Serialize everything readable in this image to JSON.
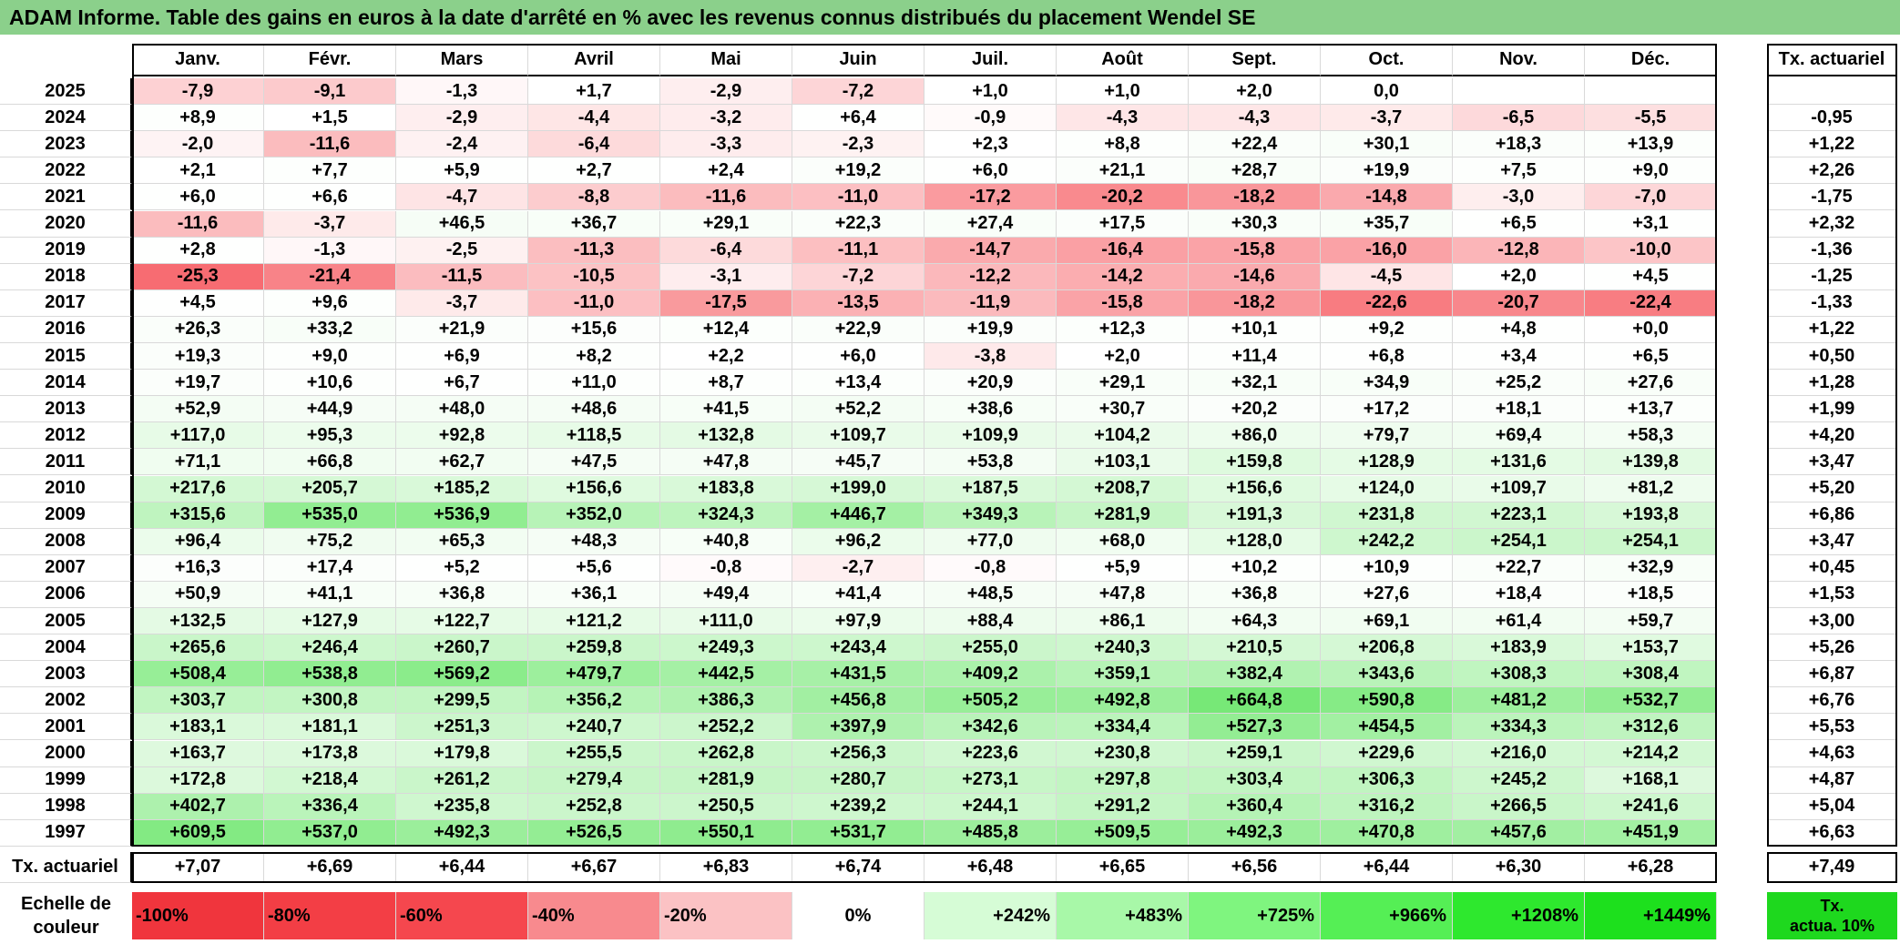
{
  "title": "ADAM Informe. Table des gains en euros à la date d'arrêté en % avec les revenus connus distribués du placement Wendel SE",
  "months": [
    "Janv.",
    "Févr.",
    "Mars",
    "Avril",
    "Mai",
    "Juin",
    "Juil.",
    "Août",
    "Sept.",
    "Oct.",
    "Nov.",
    "Déc."
  ],
  "tx_header": "Tx. actuariel",
  "rows": [
    {
      "year": "2025",
      "vals": [
        "-7,9",
        "-9,1",
        "-1,3",
        "+1,7",
        "-2,9",
        "-7,2",
        "+1,0",
        "+1,0",
        "+2,0",
        "0,0",
        "",
        ""
      ],
      "tx": ""
    },
    {
      "year": "2024",
      "vals": [
        "+8,9",
        "+1,5",
        "-2,9",
        "-4,4",
        "-3,2",
        "+6,4",
        "-0,9",
        "-4,3",
        "-4,3",
        "-3,7",
        "-6,5",
        "-5,5"
      ],
      "tx": "-0,95"
    },
    {
      "year": "2023",
      "vals": [
        "-2,0",
        "-11,6",
        "-2,4",
        "-6,4",
        "-3,3",
        "-2,3",
        "+2,3",
        "+8,8",
        "+22,4",
        "+30,1",
        "+18,3",
        "+13,9"
      ],
      "tx": "+1,22"
    },
    {
      "year": "2022",
      "vals": [
        "+2,1",
        "+7,7",
        "+5,9",
        "+2,7",
        "+2,4",
        "+19,2",
        "+6,0",
        "+21,1",
        "+28,7",
        "+19,9",
        "+7,5",
        "+9,0"
      ],
      "tx": "+2,26"
    },
    {
      "year": "2021",
      "vals": [
        "+6,0",
        "+6,6",
        "-4,7",
        "-8,8",
        "-11,6",
        "-11,0",
        "-17,2",
        "-20,2",
        "-18,2",
        "-14,8",
        "-3,0",
        "-7,0"
      ],
      "tx": "-1,75"
    },
    {
      "year": "2020",
      "vals": [
        "-11,6",
        "-3,7",
        "+46,5",
        "+36,7",
        "+29,1",
        "+22,3",
        "+27,4",
        "+17,5",
        "+30,3",
        "+35,7",
        "+6,5",
        "+3,1"
      ],
      "tx": "+2,32"
    },
    {
      "year": "2019",
      "vals": [
        "+2,8",
        "-1,3",
        "-2,5",
        "-11,3",
        "-6,4",
        "-11,1",
        "-14,7",
        "-16,4",
        "-15,8",
        "-16,0",
        "-12,8",
        "-10,0"
      ],
      "tx": "-1,36"
    },
    {
      "year": "2018",
      "vals": [
        "-25,3",
        "-21,4",
        "-11,5",
        "-10,5",
        "-3,1",
        "-7,2",
        "-12,2",
        "-14,2",
        "-14,6",
        "-4,5",
        "+2,0",
        "+4,5"
      ],
      "tx": "-1,25"
    },
    {
      "year": "2017",
      "vals": [
        "+4,5",
        "+9,6",
        "-3,7",
        "-11,0",
        "-17,5",
        "-13,5",
        "-11,9",
        "-15,8",
        "-18,2",
        "-22,6",
        "-20,7",
        "-22,4"
      ],
      "tx": "-1,33"
    },
    {
      "year": "2016",
      "vals": [
        "+26,3",
        "+33,2",
        "+21,9",
        "+15,6",
        "+12,4",
        "+22,9",
        "+19,9",
        "+12,3",
        "+10,1",
        "+9,2",
        "+4,8",
        "+0,0"
      ],
      "tx": "+1,22"
    },
    {
      "year": "2015",
      "vals": [
        "+19,3",
        "+9,0",
        "+6,9",
        "+8,2",
        "+2,2",
        "+6,0",
        "-3,8",
        "+2,0",
        "+11,4",
        "+6,8",
        "+3,4",
        "+6,5"
      ],
      "tx": "+0,50"
    },
    {
      "year": "2014",
      "vals": [
        "+19,7",
        "+10,6",
        "+6,7",
        "+11,0",
        "+8,7",
        "+13,4",
        "+20,9",
        "+29,1",
        "+32,1",
        "+34,9",
        "+25,2",
        "+27,6"
      ],
      "tx": "+1,28"
    },
    {
      "year": "2013",
      "vals": [
        "+52,9",
        "+44,9",
        "+48,0",
        "+48,6",
        "+41,5",
        "+52,2",
        "+38,6",
        "+30,7",
        "+20,2",
        "+17,2",
        "+18,1",
        "+13,7"
      ],
      "tx": "+1,99"
    },
    {
      "year": "2012",
      "vals": [
        "+117,0",
        "+95,3",
        "+92,8",
        "+118,5",
        "+132,8",
        "+109,7",
        "+109,9",
        "+104,2",
        "+86,0",
        "+79,7",
        "+69,4",
        "+58,3"
      ],
      "tx": "+4,20"
    },
    {
      "year": "2011",
      "vals": [
        "+71,1",
        "+66,8",
        "+62,7",
        "+47,5",
        "+47,8",
        "+45,7",
        "+53,8",
        "+103,1",
        "+159,8",
        "+128,9",
        "+131,6",
        "+139,8"
      ],
      "tx": "+3,47"
    },
    {
      "year": "2010",
      "vals": [
        "+217,6",
        "+205,7",
        "+185,2",
        "+156,6",
        "+183,8",
        "+199,0",
        "+187,5",
        "+208,7",
        "+156,6",
        "+124,0",
        "+109,7",
        "+81,2"
      ],
      "tx": "+5,20"
    },
    {
      "year": "2009",
      "vals": [
        "+315,6",
        "+535,0",
        "+536,9",
        "+352,0",
        "+324,3",
        "+446,7",
        "+349,3",
        "+281,9",
        "+191,3",
        "+231,8",
        "+223,1",
        "+193,8"
      ],
      "tx": "+6,86"
    },
    {
      "year": "2008",
      "vals": [
        "+96,4",
        "+75,2",
        "+65,3",
        "+48,3",
        "+40,8",
        "+96,2",
        "+77,0",
        "+68,0",
        "+128,0",
        "+242,2",
        "+254,1",
        "+254,1"
      ],
      "tx": "+3,47"
    },
    {
      "year": "2007",
      "vals": [
        "+16,3",
        "+17,4",
        "+5,2",
        "+5,6",
        "-0,8",
        "-2,7",
        "-0,8",
        "+5,9",
        "+10,2",
        "+10,9",
        "+22,7",
        "+32,9"
      ],
      "tx": "+0,45"
    },
    {
      "year": "2006",
      "vals": [
        "+50,9",
        "+41,1",
        "+36,8",
        "+36,1",
        "+49,4",
        "+41,4",
        "+48,5",
        "+47,8",
        "+36,8",
        "+27,6",
        "+18,4",
        "+18,5"
      ],
      "tx": "+1,53"
    },
    {
      "year": "2005",
      "vals": [
        "+132,5",
        "+127,9",
        "+122,7",
        "+121,2",
        "+111,0",
        "+97,9",
        "+88,4",
        "+86,1",
        "+64,3",
        "+69,1",
        "+61,4",
        "+59,7"
      ],
      "tx": "+3,00"
    },
    {
      "year": "2004",
      "vals": [
        "+265,6",
        "+246,4",
        "+260,7",
        "+259,8",
        "+249,3",
        "+243,4",
        "+255,0",
        "+240,3",
        "+210,5",
        "+206,8",
        "+183,9",
        "+153,7"
      ],
      "tx": "+5,26"
    },
    {
      "year": "2003",
      "vals": [
        "+508,4",
        "+538,8",
        "+569,2",
        "+479,7",
        "+442,5",
        "+431,5",
        "+409,2",
        "+359,1",
        "+382,4",
        "+343,6",
        "+308,3",
        "+308,4"
      ],
      "tx": "+6,87"
    },
    {
      "year": "2002",
      "vals": [
        "+303,7",
        "+300,8",
        "+299,5",
        "+356,2",
        "+386,3",
        "+456,8",
        "+505,2",
        "+492,8",
        "+664,8",
        "+590,8",
        "+481,2",
        "+532,7"
      ],
      "tx": "+6,76"
    },
    {
      "year": "2001",
      "vals": [
        "+183,1",
        "+181,1",
        "+251,3",
        "+240,7",
        "+252,2",
        "+397,9",
        "+342,6",
        "+334,4",
        "+527,3",
        "+454,5",
        "+334,3",
        "+312,6"
      ],
      "tx": "+5,53"
    },
    {
      "year": "2000",
      "vals": [
        "+163,7",
        "+173,8",
        "+179,8",
        "+255,5",
        "+262,8",
        "+256,3",
        "+223,6",
        "+230,8",
        "+259,1",
        "+229,6",
        "+216,0",
        "+214,2"
      ],
      "tx": "+4,63"
    },
    {
      "year": "1999",
      "vals": [
        "+172,8",
        "+218,4",
        "+261,2",
        "+279,4",
        "+281,9",
        "+280,7",
        "+273,1",
        "+297,8",
        "+303,4",
        "+306,3",
        "+245,2",
        "+168,1"
      ],
      "tx": "+4,87"
    },
    {
      "year": "1998",
      "vals": [
        "+402,7",
        "+336,4",
        "+235,8",
        "+252,8",
        "+250,5",
        "+239,2",
        "+244,1",
        "+291,2",
        "+360,4",
        "+316,2",
        "+266,5",
        "+241,6"
      ],
      "tx": "+5,04"
    },
    {
      "year": "1997",
      "vals": [
        "+609,5",
        "+537,0",
        "+492,3",
        "+526,5",
        "+550,1",
        "+531,7",
        "+485,8",
        "+509,5",
        "+492,3",
        "+470,8",
        "+457,6",
        "+451,9"
      ],
      "tx": "+6,63"
    }
  ],
  "footer": {
    "label": "Tx. actuariel",
    "vals": [
      "+7,07",
      "+6,69",
      "+6,44",
      "+6,67",
      "+6,83",
      "+6,74",
      "+6,48",
      "+6,65",
      "+6,56",
      "+6,44",
      "+6,30",
      "+6,28"
    ],
    "total": "+7,49"
  },
  "scale": {
    "label_line1": "Echelle de",
    "label_line2": "couleur",
    "items": [
      {
        "label": "-100%",
        "color": "#f0353d",
        "align": "left"
      },
      {
        "label": "-80%",
        "color": "#f33e45",
        "align": "left"
      },
      {
        "label": "-60%",
        "color": "#f5474e",
        "align": "left"
      },
      {
        "label": "-40%",
        "color": "#f88a8e",
        "align": "left"
      },
      {
        "label": "-20%",
        "color": "#fbc2c4",
        "align": "left"
      },
      {
        "label": "0%",
        "color": "#ffffff",
        "align": "center"
      },
      {
        "label": "+242%",
        "color": "#d6fcd6",
        "align": "right"
      },
      {
        "label": "+483%",
        "color": "#a8f8a8",
        "align": "right"
      },
      {
        "label": "+725%",
        "color": "#7ff57f",
        "align": "right"
      },
      {
        "label": "+966%",
        "color": "#55ef55",
        "align": "right"
      },
      {
        "label": "+1208%",
        "color": "#2ee82e",
        "align": "right"
      },
      {
        "label": "+1449%",
        "color": "#1de01d",
        "align": "right"
      }
    ],
    "actua_line1": "Tx.",
    "actua_line2": "actua. 10%",
    "actua_color": "#1ed81e"
  },
  "colors": {
    "title_bg": "#8bd08b",
    "negative": "#f5474e",
    "positive": "#33dd33"
  }
}
